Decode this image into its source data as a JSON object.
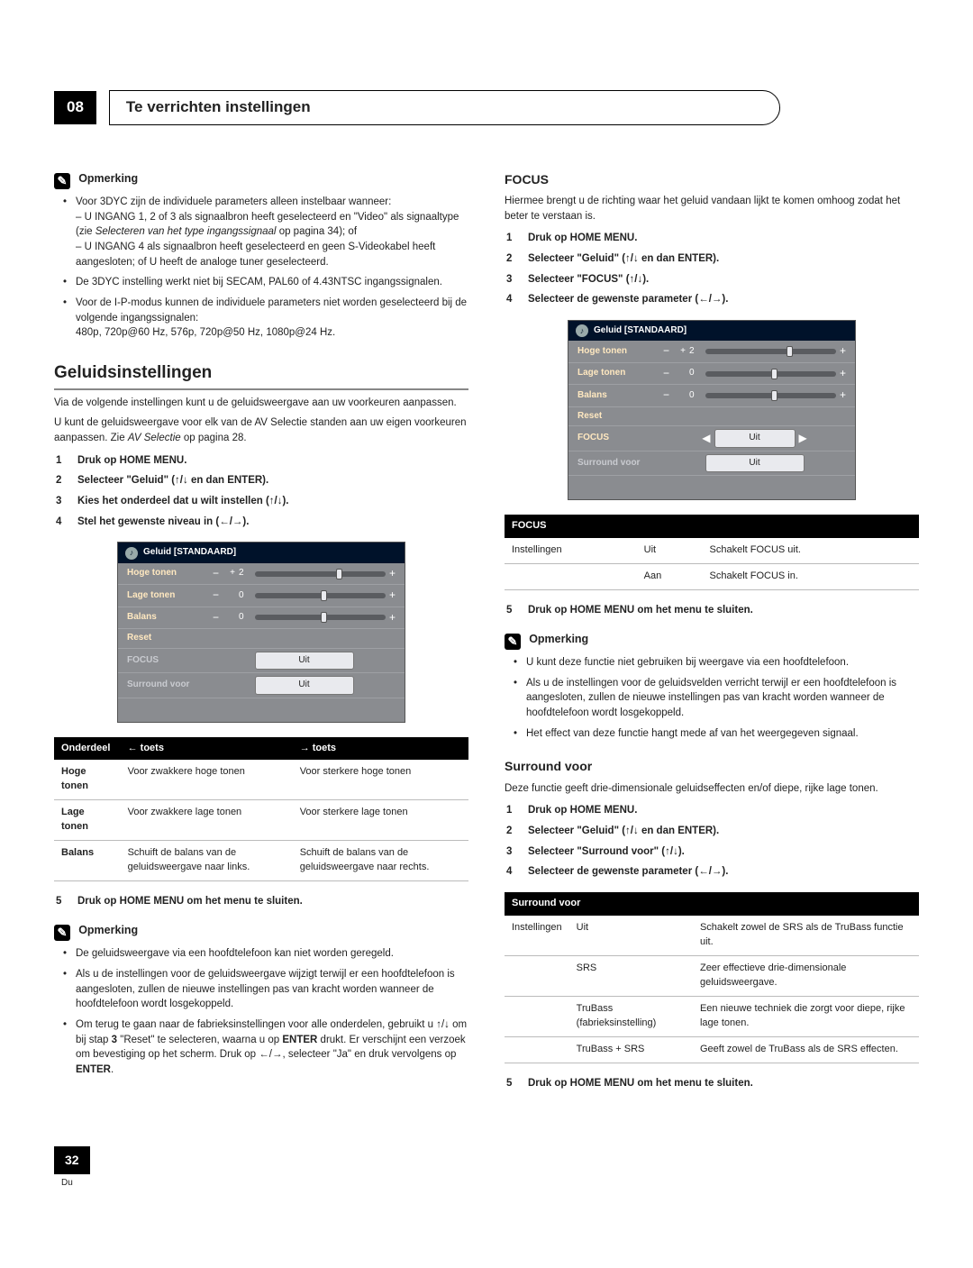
{
  "chapter": "08",
  "tabTitle": "Te verrichten instellingen",
  "pageNum": "32",
  "pageSub": "Du",
  "arrows": {
    "left": "←",
    "right": "→",
    "up": "↑",
    "down": "↓"
  },
  "left": {
    "note1Label": "Opmerking",
    "note1": {
      "b1a": "Voor 3DYC zijn de individuele parameters alleen instelbaar wanneer:",
      "b1b": "– U INGANG 1, 2 of 3 als signaalbron heeft geselecteerd en \"Video\" als signaaltype (zie ",
      "b1bItalic": "Selecteren van het type ingangssignaal",
      "b1c": " op pagina 34); of",
      "b1d": "– U INGANG 4 als signaalbron heeft geselecteerd en geen S-Videokabel heeft aangesloten; of  U heeft de analoge tuner geselecteerd.",
      "b2": "De 3DYC instelling werkt niet bij SECAM, PAL60 of 4.43NTSC ingangssignalen.",
      "b3a": "Voor de I-P-modus kunnen de individuele parameters niet worden geselecteerd bij de volgende ingangssignalen:",
      "b3b": "480p, 720p@60 Hz, 576p, 720p@50 Hz, 1080p@24 Hz."
    },
    "h2": "Geluidsinstellingen",
    "p1": "Via de volgende instellingen kunt u de geluidsweergave aan uw voorkeuren aanpassen.",
    "p2a": "U kunt de geluidsweergave voor elk van de AV Selectie standen aan uw eigen voorkeuren aanpassen. Zie ",
    "p2i": "AV Selectie",
    "p2b": " op pagina 28.",
    "steps": {
      "s1": "Druk op HOME MENU.",
      "s2": "Selecteer \"Geluid\" (↑/↓ en dan ENTER).",
      "s3": "Kies het onderdeel dat u wilt instellen (↑/↓).",
      "s4": "Stel het gewenste niveau in (←/→)."
    },
    "osd": {
      "title": "Geluid [STANDAARD]",
      "rows": [
        {
          "label": "Hoge tonen",
          "kind": "slider",
          "pre": "+",
          "val": "2",
          "thumb": 62
        },
        {
          "label": "Lage tonen",
          "kind": "slider",
          "pre": "",
          "val": "0",
          "thumb": 50
        },
        {
          "label": "Balans",
          "kind": "slider",
          "pre": "",
          "val": "0",
          "thumb": 50
        },
        {
          "label": "Reset",
          "kind": "blank"
        },
        {
          "label": "FOCUS",
          "kind": "box",
          "val": "Uit",
          "grey": true
        },
        {
          "label": "Surround voor",
          "kind": "box",
          "val": "Uit",
          "grey": true
        }
      ]
    },
    "table": {
      "h1": "Onderdeel",
      "h2": "← toets",
      "h3": "→ toets",
      "rows": [
        [
          "Hoge tonen",
          "Voor zwakkere hoge tonen",
          "Voor sterkere hoge tonen"
        ],
        [
          "Lage tonen",
          "Voor zwakkere lage tonen",
          "Voor sterkere lage tonen"
        ],
        [
          "Balans",
          "Schuift de balans van de geluidsweergave naar links.",
          "Schuift de balans van de geluidsweergave naar rechts."
        ]
      ]
    },
    "step5": "Druk op HOME MENU om het menu te sluiten.",
    "note2Label": "Opmerking",
    "note2": {
      "b1": "De geluidsweergave via een hoofdtelefoon kan niet worden geregeld.",
      "b2": "Als u de instellingen voor de geluidsweergave wijzigt terwijl er een hoofdtelefoon is aangesloten, zullen de nieuwe instellingen pas van kracht worden wanneer de hoofdtelefoon wordt losgekoppeld.",
      "b3a": "Om terug te gaan naar de fabrieksinstellingen voor alle onderdelen, gebruikt u ↑/↓ om bij stap ",
      "b3b": "3",
      "b3c": " \"Reset\" te selecteren, waarna u op ",
      "b3d": "ENTER",
      "b3e": " drukt. Er verschijnt een verzoek om bevestiging op het scherm. Druk op ←/→, selecteer \"Ja\" en druk vervolgens op ",
      "b3f": "ENTER",
      "b3g": "."
    }
  },
  "right": {
    "focusH": "FOCUS",
    "focusP": "Hiermee brengt u de richting waar het geluid vandaan lijkt te komen omhoog zodat het beter te verstaan is.",
    "focusSteps": {
      "s1": "Druk op HOME MENU.",
      "s2": "Selecteer \"Geluid\" (↑/↓ en dan ENTER).",
      "s3": "Selecteer \"FOCUS\" (↑/↓).",
      "s4": "Selecteer de gewenste parameter (←/→)."
    },
    "osd": {
      "title": "Geluid [STANDAARD]",
      "rows": [
        {
          "label": "Hoge tonen",
          "kind": "slider",
          "pre": "+",
          "val": "2",
          "thumb": 62
        },
        {
          "label": "Lage tonen",
          "kind": "slider",
          "pre": "",
          "val": "0",
          "thumb": 50
        },
        {
          "label": "Balans",
          "kind": "slider",
          "pre": "",
          "val": "0",
          "thumb": 50
        },
        {
          "label": "Reset",
          "kind": "blank"
        },
        {
          "label": "FOCUS",
          "kind": "boxarrow",
          "val": "Uit"
        },
        {
          "label": "Surround voor",
          "kind": "box",
          "val": "Uit",
          "grey": true
        }
      ]
    },
    "focusTable": {
      "h": "FOCUS",
      "rows": [
        [
          "Instellingen",
          "Uit",
          "Schakelt FOCUS uit."
        ],
        [
          "",
          "Aan",
          "Schakelt FOCUS in."
        ]
      ]
    },
    "focusStep5": "Druk op HOME MENU om het menu te sluiten.",
    "note3Label": "Opmerking",
    "note3": {
      "b1": "U kunt deze functie niet gebruiken bij weergave via een hoofdtelefoon.",
      "b2": "Als u de instellingen voor de geluidsvelden verricht terwijl er een hoofdtelefoon is aangesloten, zullen de nieuwe instellingen pas van kracht worden wanneer de hoofdtelefoon wordt losgekoppeld.",
      "b3": "Het effect van deze functie hangt mede af van het weergegeven signaal."
    },
    "surroundH": "Surround voor",
    "surroundP": "Deze functie geeft drie-dimensionale geluidseffecten en/of diepe, rijke lage tonen.",
    "surroundSteps": {
      "s1": "Druk op HOME MENU.",
      "s2": "Selecteer \"Geluid\" (↑/↓ en dan ENTER).",
      "s3": "Selecteer \"Surround voor\" (↑/↓).",
      "s4": "Selecteer de gewenste parameter (←/→)."
    },
    "surroundTable": {
      "h": "Surround voor",
      "rows": [
        [
          "Instellingen",
          "Uit",
          "Schakelt zowel de SRS als de TruBass functie uit."
        ],
        [
          "",
          "SRS",
          "Zeer effectieve drie-dimensionale geluidsweergave."
        ],
        [
          "",
          "TruBass (fabrieksinstelling)",
          "Een nieuwe techniek die zorgt voor diepe, rijke lage tonen."
        ],
        [
          "",
          "TruBass + SRS",
          "Geeft zowel de TruBass als de SRS effecten."
        ]
      ]
    },
    "surroundStep5": "Druk op HOME MENU om het menu te sluiten."
  }
}
